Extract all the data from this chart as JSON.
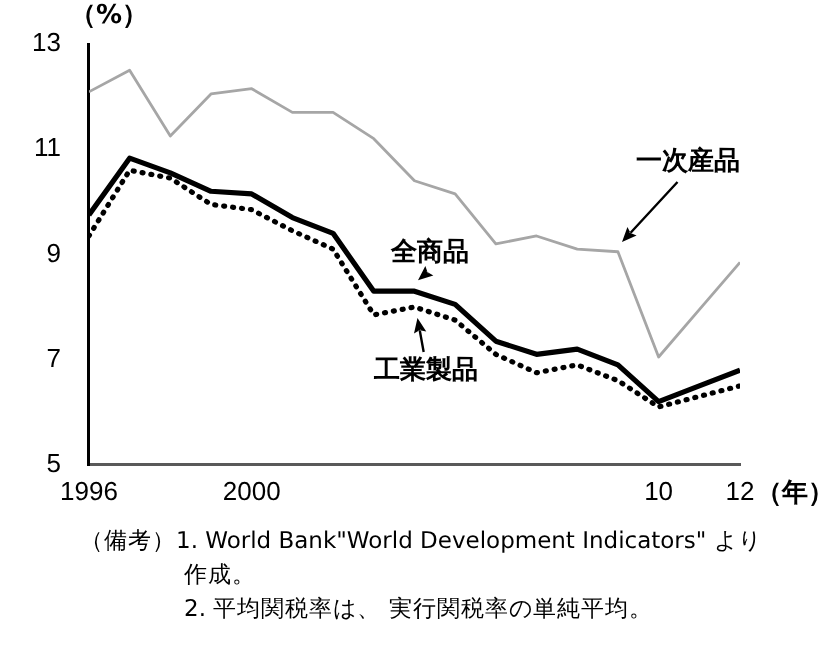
{
  "chart_data": {
    "type": "line",
    "ylabel": "（%）",
    "xlabel": "（年）",
    "x": [
      1996,
      1997,
      1998,
      1999,
      2000,
      2001,
      2002,
      2003,
      2004,
      2005,
      2006,
      2007,
      2008,
      2009,
      2010,
      2011,
      2012
    ],
    "series": [
      {
        "name": "全商品",
        "color": "#000000",
        "line_style": "solid",
        "values": [
          9.75,
          10.83,
          10.55,
          10.2,
          10.15,
          9.7,
          9.4,
          8.3,
          8.3,
          8.05,
          7.35,
          7.1,
          7.2,
          6.9,
          6.2,
          6.5,
          6.8
        ]
      },
      {
        "name": "工業製品",
        "color": "#000000",
        "line_style": "dotted",
        "values": [
          9.35,
          10.6,
          10.45,
          9.95,
          9.85,
          9.45,
          9.1,
          7.85,
          8.0,
          7.75,
          7.1,
          6.75,
          6.9,
          6.6,
          6.1,
          6.3,
          6.5
        ]
      },
      {
        "name": "一次産品",
        "color": "#a6a6a6",
        "line_style": "solid",
        "values": [
          12.09,
          12.5,
          11.25,
          12.05,
          12.15,
          11.7,
          11.7,
          11.2,
          10.4,
          10.15,
          9.2,
          9.35,
          9.1,
          9.05,
          7.05,
          7.95,
          8.85
        ]
      }
    ],
    "xlim": [
      1996,
      2012
    ],
    "xticks": [
      {
        "value": 1996,
        "label": "1996"
      },
      {
        "value": 2000,
        "label": "2000"
      },
      {
        "value": 2010,
        "label": "10"
      },
      {
        "value": 2012,
        "label": "12"
      }
    ],
    "ylim": [
      5,
      13
    ],
    "yticks": [
      5,
      7,
      9,
      11,
      13
    ],
    "grid": false,
    "legend": false,
    "marker": "none",
    "annotations": [
      "（備考）1. World Bank\"World Development Indicators\" より作成。",
      "2. 平均関税率は、 実行関税率の単純平均。"
    ]
  }
}
